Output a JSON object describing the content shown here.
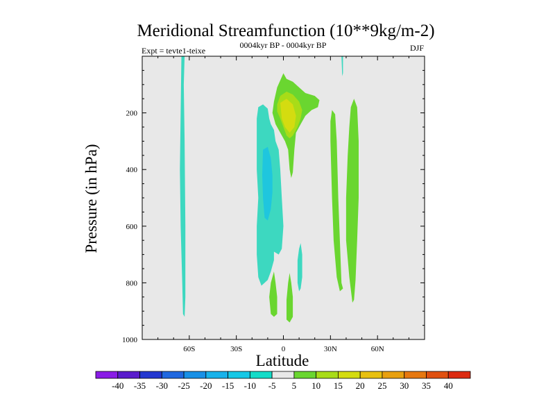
{
  "chart_data": {
    "type": "heatmap",
    "title": "Meridional Streamfunction (10**9kg/m-2)",
    "subtitle": "0004kyr BP - 0004kyr BP",
    "left_label": "Expt = tevte1-teixe",
    "right_label": "DJF",
    "xlabel": "Latitude",
    "ylabel": "Pressure (in hPa)",
    "xlim": [
      -90,
      90
    ],
    "ylim": [
      1000,
      0
    ],
    "x_ticks": [
      {
        "value": -60,
        "label": "60S"
      },
      {
        "value": -30,
        "label": "30S"
      },
      {
        "value": 0,
        "label": "0"
      },
      {
        "value": 30,
        "label": "30N"
      },
      {
        "value": 60,
        "label": "60N"
      }
    ],
    "y_ticks": [
      {
        "value": 200,
        "label": "200"
      },
      {
        "value": 400,
        "label": "400"
      },
      {
        "value": 600,
        "label": "600"
      },
      {
        "value": 800,
        "label": "800"
      },
      {
        "value": 1000,
        "label": "1000"
      }
    ],
    "background_color": "#e8e8e8",
    "colorbar": {
      "labels": [
        "-40",
        "-35",
        "-30",
        "-25",
        "-20",
        "-15",
        "-10",
        "-5",
        "5",
        "10",
        "15",
        "20",
        "25",
        "30",
        "35",
        "40"
      ],
      "colors": [
        "#8a1ce6",
        "#5a1ccc",
        "#2438d0",
        "#2068e0",
        "#1890e6",
        "#18b2ea",
        "#16c8e6",
        "#14dcc8",
        "#e8e8e8",
        "#6ad630",
        "#a8dc18",
        "#d4dc10",
        "#e8c010",
        "#e8a010",
        "#e67810",
        "#e05010",
        "#dc2a10"
      ]
    },
    "regions": [
      {
        "name": "sh-polar-band",
        "level": -5,
        "color": "#3dd8c0",
        "outline": [
          [
            -65,
            0
          ],
          [
            -63,
            0
          ],
          [
            -63.5,
            100
          ],
          [
            -63,
            300
          ],
          [
            -62.5,
            600
          ],
          [
            -62.5,
            850
          ],
          [
            -63,
            920
          ],
          [
            -64,
            910
          ],
          [
            -64.5,
            800
          ],
          [
            -65.5,
            600
          ],
          [
            -66,
            400
          ],
          [
            -65.5,
            200
          ]
        ]
      },
      {
        "name": "south-subtropical-negative",
        "level": -5,
        "color": "#3dd8c0",
        "outline": [
          [
            -16,
            180
          ],
          [
            -13,
            170
          ],
          [
            -10,
            185
          ],
          [
            -9,
            220
          ],
          [
            -8,
            240
          ],
          [
            -6,
            260
          ],
          [
            -5,
            300
          ],
          [
            -3,
            330
          ],
          [
            -2,
            400
          ],
          [
            -1,
            500
          ],
          [
            0,
            600
          ],
          [
            -1,
            680
          ],
          [
            -3,
            700
          ],
          [
            -6,
            690
          ],
          [
            -6,
            720
          ],
          [
            -8,
            760
          ],
          [
            -10,
            790
          ],
          [
            -14,
            810
          ],
          [
            -16,
            780
          ],
          [
            -17,
            700
          ],
          [
            -17,
            600
          ],
          [
            -16,
            500
          ],
          [
            -17,
            400
          ],
          [
            -17,
            300
          ],
          [
            -17,
            220
          ]
        ]
      },
      {
        "name": "south-subtropical-core",
        "level": -10,
        "color": "#1fc6de",
        "outline": [
          [
            -13,
            330
          ],
          [
            -10,
            320
          ],
          [
            -8,
            360
          ],
          [
            -7,
            420
          ],
          [
            -7,
            480
          ],
          [
            -8,
            540
          ],
          [
            -10,
            580
          ],
          [
            -12,
            570
          ],
          [
            -13,
            500
          ],
          [
            -13.5,
            420
          ]
        ]
      },
      {
        "name": "eq-upper-positive",
        "level": 5,
        "color": "#6ad630",
        "outline": [
          [
            -4,
            110
          ],
          [
            0,
            60
          ],
          [
            2,
            80
          ],
          [
            6,
            90
          ],
          [
            10,
            110
          ],
          [
            14,
            130
          ],
          [
            20,
            140
          ],
          [
            23,
            155
          ],
          [
            22,
            180
          ],
          [
            18,
            190
          ],
          [
            14,
            210
          ],
          [
            11,
            240
          ],
          [
            8,
            270
          ],
          [
            7,
            330
          ],
          [
            6,
            410
          ],
          [
            5,
            430
          ],
          [
            4,
            400
          ],
          [
            3,
            330
          ],
          [
            1,
            300
          ],
          [
            -2,
            270
          ],
          [
            -5,
            240
          ],
          [
            -7,
            200
          ],
          [
            -6,
            160
          ]
        ]
      },
      {
        "name": "eq-upper-mid",
        "level": 10,
        "color": "#a8dc18",
        "outline": [
          [
            -4,
            170
          ],
          [
            -2,
            140
          ],
          [
            2,
            125
          ],
          [
            6,
            135
          ],
          [
            10,
            160
          ],
          [
            12,
            190
          ],
          [
            11,
            220
          ],
          [
            9,
            250
          ],
          [
            6,
            280
          ],
          [
            4,
            290
          ],
          [
            2,
            280
          ],
          [
            0,
            250
          ],
          [
            -2,
            220
          ],
          [
            -4,
            195
          ]
        ]
      },
      {
        "name": "eq-upper-core",
        "level": 15,
        "color": "#d4dc10",
        "outline": [
          [
            -2,
            165
          ],
          [
            2,
            150
          ],
          [
            6,
            170
          ],
          [
            8,
            210
          ],
          [
            7,
            250
          ],
          [
            4,
            270
          ],
          [
            1,
            250
          ],
          [
            -1,
            220
          ]
        ]
      },
      {
        "name": "nh-subtropical-positive",
        "level": 5,
        "color": "#6ad630",
        "outline": [
          [
            31,
            190
          ],
          [
            33,
            205
          ],
          [
            34,
            300
          ],
          [
            35,
            500
          ],
          [
            36,
            650
          ],
          [
            37,
            800
          ],
          [
            38,
            820
          ],
          [
            36,
            830
          ],
          [
            34,
            780
          ],
          [
            32,
            650
          ],
          [
            31,
            500
          ],
          [
            30,
            300
          ],
          [
            30,
            230
          ]
        ]
      },
      {
        "name": "nh-midlat-positive",
        "level": 5,
        "color": "#6ad630",
        "outline": [
          [
            45,
            150
          ],
          [
            47,
            180
          ],
          [
            48,
            300
          ],
          [
            48,
            500
          ],
          [
            47,
            650
          ],
          [
            46,
            790
          ],
          [
            45,
            860
          ],
          [
            44,
            870
          ],
          [
            42,
            780
          ],
          [
            40,
            650
          ],
          [
            40,
            500
          ],
          [
            41,
            350
          ],
          [
            42,
            250
          ],
          [
            43,
            180
          ]
        ]
      },
      {
        "name": "lower-positive-left",
        "level": 5,
        "color": "#6ad630",
        "outline": [
          [
            -6,
            760
          ],
          [
            -5,
            800
          ],
          [
            -4,
            850
          ],
          [
            -4,
            910
          ],
          [
            -6,
            920
          ],
          [
            -8,
            910
          ],
          [
            -9,
            850
          ],
          [
            -8,
            800
          ]
        ]
      },
      {
        "name": "lower-positive-right",
        "level": 5,
        "color": "#6ad630",
        "outline": [
          [
            4,
            765
          ],
          [
            5,
            800
          ],
          [
            6,
            850
          ],
          [
            6,
            920
          ],
          [
            4,
            940
          ],
          [
            2,
            930
          ],
          [
            2,
            860
          ],
          [
            3,
            800
          ]
        ]
      },
      {
        "name": "nh-lower-negative",
        "level": -5,
        "color": "#3dd8c0",
        "outline": [
          [
            11,
            660
          ],
          [
            12,
            700
          ],
          [
            12,
            780
          ],
          [
            11,
            820
          ],
          [
            10,
            830
          ],
          [
            9,
            800
          ],
          [
            9,
            720
          ],
          [
            10,
            680
          ]
        ]
      },
      {
        "name": "nh-top-sliver",
        "level": -5,
        "color": "#3dd8c0",
        "outline": [
          [
            37,
            0
          ],
          [
            38,
            0
          ],
          [
            38,
            60
          ],
          [
            37.5,
            70
          ]
        ]
      }
    ]
  }
}
